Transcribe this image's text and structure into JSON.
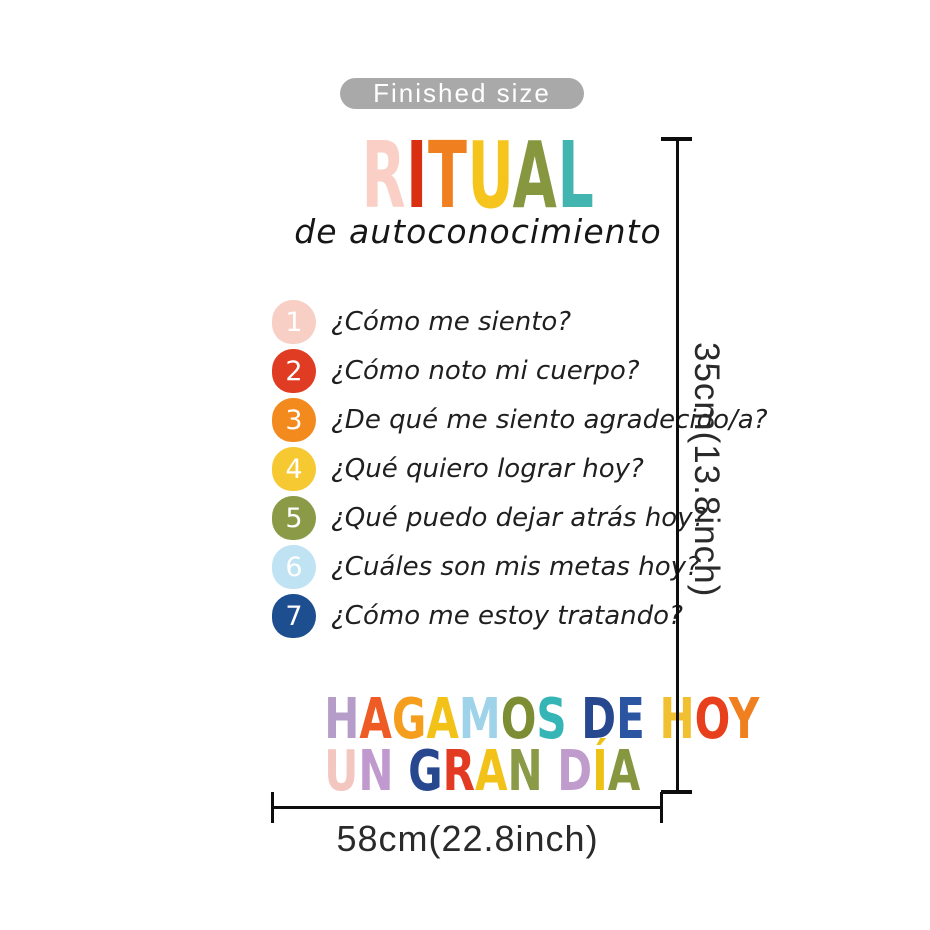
{
  "badge": {
    "label": "Finished size",
    "bg_color": "#a9a9a9"
  },
  "poster": {
    "title_letters": [
      {
        "ch": "R",
        "color": "#f9cfc6"
      },
      {
        "ch": "I",
        "color": "#d93012"
      },
      {
        "ch": "T",
        "color": "#f07f1f"
      },
      {
        "ch": "U",
        "color": "#f6c51d"
      },
      {
        "ch": "A",
        "color": "#879740"
      },
      {
        "ch": "L",
        "color": "#42b5b0"
      }
    ],
    "subtitle": "de autoconocimiento",
    "items": [
      {
        "num": "1",
        "circle_color": "#f7cfc4",
        "text": "¿Cómo me siento?"
      },
      {
        "num": "2",
        "circle_color": "#e03c23",
        "text": "¿Cómo noto mi cuerpo?"
      },
      {
        "num": "3",
        "circle_color": "#f28a1e",
        "text": "¿De qué me siento agradecido/a?"
      },
      {
        "num": "4",
        "circle_color": "#f6c832",
        "text": "¿Qué quiero lograr hoy?"
      },
      {
        "num": "5",
        "circle_color": "#8a9a47",
        "text": "¿Qué puedo dejar atrás hoy?"
      },
      {
        "num": "6",
        "circle_color": "#bfe3f2",
        "text": "¿Cuáles son mis metas hoy?"
      },
      {
        "num": "7",
        "circle_color": "#1d4e8f",
        "text": "¿Cómo me estoy tratando?"
      }
    ],
    "slogan_line1_letters": [
      {
        "ch": "H",
        "color": "#b59cc9"
      },
      {
        "ch": "A",
        "color": "#ee5b24"
      },
      {
        "ch": "G",
        "color": "#f59d1c"
      },
      {
        "ch": "A",
        "color": "#f2c218"
      },
      {
        "ch": "M",
        "color": "#9fd3ea"
      },
      {
        "ch": "O",
        "color": "#7d8d33"
      },
      {
        "ch": "S",
        "color": "#35b5b5"
      },
      {
        "ch": " ",
        "color": ""
      },
      {
        "ch": "D",
        "color": "#27488e"
      },
      {
        "ch": "E",
        "color": "#2b55a0"
      },
      {
        "ch": " ",
        "color": ""
      },
      {
        "ch": "H",
        "color": "#f0c030"
      },
      {
        "ch": "O",
        "color": "#e8401c"
      },
      {
        "ch": "Y",
        "color": "#f07f1f"
      }
    ],
    "slogan_line2_letters": [
      {
        "ch": "U",
        "color": "#f3c6bf"
      },
      {
        "ch": "N",
        "color": "#c09ace"
      },
      {
        "ch": " ",
        "color": ""
      },
      {
        "ch": "G",
        "color": "#27488e"
      },
      {
        "ch": "R",
        "color": "#e23b22"
      },
      {
        "ch": "A",
        "color": "#f2c218"
      },
      {
        "ch": "N",
        "color": "#8a9a47"
      },
      {
        "ch": " ",
        "color": ""
      },
      {
        "ch": "D",
        "color": "#bf9ccc"
      },
      {
        "ch": "Í",
        "color": "#eec117"
      },
      {
        "ch": "A",
        "color": "#879740"
      }
    ]
  },
  "dimensions": {
    "height_label": "35cm(13.8inch)",
    "width_label": "58cm(22.8inch)",
    "line_color": "#0d0d0d",
    "text_color": "#2a2a2a"
  }
}
